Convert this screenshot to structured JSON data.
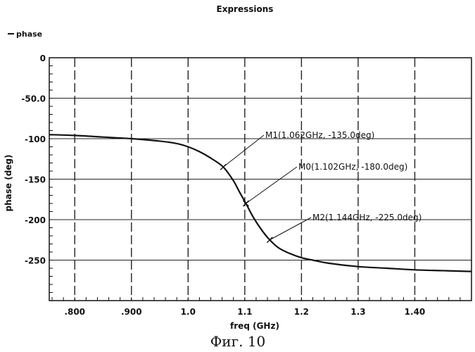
{
  "chart_data": {
    "type": "line",
    "title": "Expressions",
    "xlabel": "freq (GHz)",
    "ylabel": "phase (deg)",
    "xlim": [
      0.755,
      1.5
    ],
    "ylim": [
      -300,
      0
    ],
    "x_ticks": [
      {
        "value": 0.8,
        "label": ".800"
      },
      {
        "value": 0.9,
        "label": ".900"
      },
      {
        "value": 1.0,
        "label": "1.0"
      },
      {
        "value": 1.1,
        "label": "1.1"
      },
      {
        "value": 1.2,
        "label": "1.2"
      },
      {
        "value": 1.3,
        "label": "1.3"
      },
      {
        "value": 1.4,
        "label": "1.40"
      }
    ],
    "y_ticks": [
      {
        "value": 0,
        "label": "0"
      },
      {
        "value": -50,
        "label": "-50.0"
      },
      {
        "value": -100,
        "label": "-100"
      },
      {
        "value": -150,
        "label": "-150"
      },
      {
        "value": -200,
        "label": "-200"
      },
      {
        "value": -250,
        "label": "-250"
      }
    ],
    "grid": true,
    "legend_position": "top-left",
    "series": [
      {
        "name": "phase",
        "x": [
          0.755,
          0.8,
          0.85,
          0.9,
          0.95,
          0.98,
          1.0,
          1.02,
          1.04,
          1.062,
          1.08,
          1.09,
          1.102,
          1.115,
          1.13,
          1.144,
          1.16,
          1.18,
          1.2,
          1.22,
          1.25,
          1.3,
          1.35,
          1.4,
          1.45,
          1.5
        ],
        "y": [
          -95,
          -96,
          -98,
          -100,
          -103,
          -106,
          -110,
          -116,
          -124,
          -135,
          -152,
          -165,
          -180,
          -197,
          -213,
          -225,
          -235,
          -242,
          -247,
          -250,
          -254,
          -258,
          -260,
          -262,
          -263,
          -264
        ]
      }
    ],
    "markers": [
      {
        "x": 1.062,
        "y": -135.0,
        "label": "M1(1.062GHz, -135.0deg)"
      },
      {
        "x": 1.102,
        "y": -180.0,
        "label": "M0(1.102GHz, -180.0deg)"
      },
      {
        "x": 1.144,
        "y": -225.0,
        "label": "M2(1.144GHz, -225.0deg)"
      }
    ],
    "caption": "Фиг. 10"
  }
}
